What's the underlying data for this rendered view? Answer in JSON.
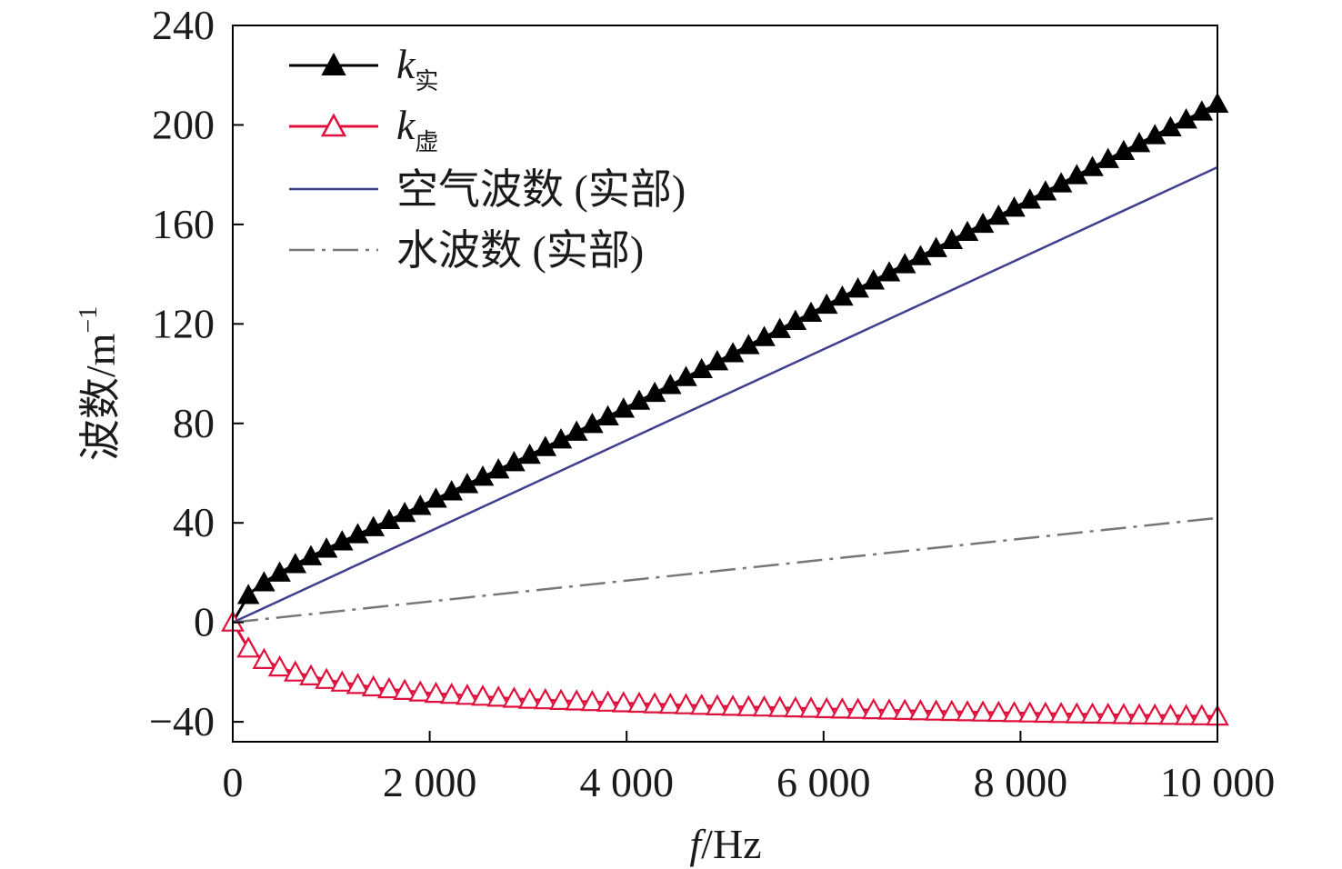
{
  "chart_data": {
    "type": "line",
    "xlabel_italic": "f",
    "xlabel_unit": "/Hz",
    "ylabel_text": "波数/m",
    "ylabel_sup": "−1",
    "xlim": [
      0,
      10000
    ],
    "ylim": [
      -48,
      240
    ],
    "xticks": [
      0,
      2000,
      4000,
      6000,
      8000,
      10000
    ],
    "xtick_labels": [
      "0",
      "2 000",
      "4 000",
      "6 000",
      "8 000",
      "10 000"
    ],
    "yticks": [
      -40,
      0,
      40,
      80,
      120,
      160,
      200,
      240
    ],
    "ytick_labels": [
      "−40",
      "0",
      "40",
      "80",
      "120",
      "160",
      "200",
      "240"
    ],
    "legend_position": "top-left",
    "series": [
      {
        "name_main": "k",
        "name_sub": "实",
        "color": "#000000",
        "marker": "filled-triangle",
        "line_style": "solid",
        "x": [
          0,
          167,
          333,
          500,
          667,
          833,
          1000,
          1500,
          2000,
          3000,
          4000,
          5000,
          6000,
          7000,
          8000,
          9000,
          10000
        ],
        "y": [
          0,
          11.5,
          16.5,
          20.5,
          24,
          27.3,
          30.5,
          39.5,
          48.5,
          67,
          86.5,
          106.5,
          127,
          147.5,
          168,
          188.5,
          208.5
        ]
      },
      {
        "name_main": "k",
        "name_sub": "虚",
        "color": "#e0103c",
        "marker": "hollow-triangle",
        "line_style": "solid",
        "x": [
          0,
          167,
          333,
          500,
          667,
          833,
          1000,
          1500,
          2000,
          3000,
          4000,
          5000,
          6000,
          7000,
          8000,
          9000,
          10000
        ],
        "y": [
          0,
          -11,
          -15.5,
          -18.5,
          -20.5,
          -22,
          -23.5,
          -26.5,
          -28.5,
          -31,
          -32.5,
          -33.8,
          -34.8,
          -35.7,
          -36.5,
          -37.2,
          -37.8
        ]
      },
      {
        "name": "空气波数 (实部)",
        "color": "#3f3f8f",
        "marker": "none",
        "line_style": "solid",
        "x": [
          0,
          10000
        ],
        "y": [
          0,
          183
        ]
      },
      {
        "name": "水波数 (实部)",
        "color": "#777777",
        "marker": "none",
        "line_style": "dashdot",
        "x": [
          0,
          10000
        ],
        "y": [
          0,
          42
        ]
      }
    ]
  }
}
